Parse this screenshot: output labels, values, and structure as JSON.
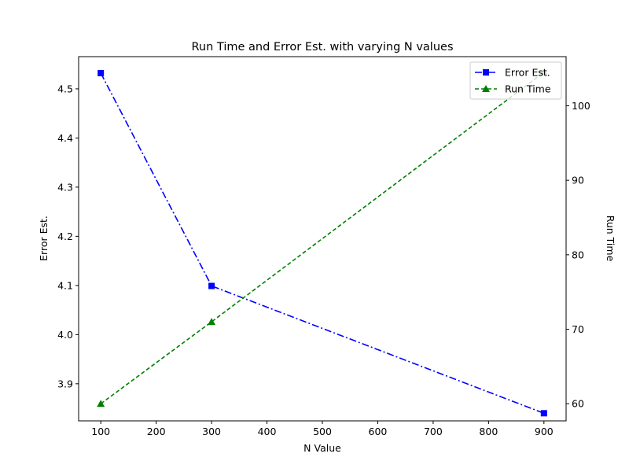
{
  "chart_data": {
    "type": "line",
    "title": "Run Time and Error Est. with varying N values",
    "xlabel": "N Value",
    "ylabel_left": "Error Est.",
    "ylabel_right": "Run Time",
    "x": [
      100,
      300,
      900
    ],
    "xlim": [
      60,
      940
    ],
    "ylim_left": [
      3.8245,
      4.5655
    ],
    "ylim_right": [
      57.7,
      106.6
    ],
    "x_ticks": [
      "100",
      "200",
      "300",
      "400",
      "500",
      "600",
      "700",
      "800",
      "900"
    ],
    "y_left_ticks": [
      "3.9",
      "4.0",
      "4.1",
      "4.2",
      "4.3",
      "4.4",
      "4.5"
    ],
    "y_right_ticks": [
      "60",
      "70",
      "80",
      "90",
      "100"
    ],
    "grid": false,
    "legend_position": "top-right",
    "series": [
      {
        "name": "Error Est.",
        "axis": "left",
        "values": [
          4.532,
          4.099,
          3.84
        ],
        "color": "#0000ff",
        "linestyle": "dash-dot",
        "marker": "square"
      },
      {
        "name": "Run Time",
        "axis": "right",
        "values": [
          60.0,
          71.0,
          104.5
        ],
        "color": "#008000",
        "linestyle": "dashed",
        "marker": "triangle"
      }
    ]
  }
}
